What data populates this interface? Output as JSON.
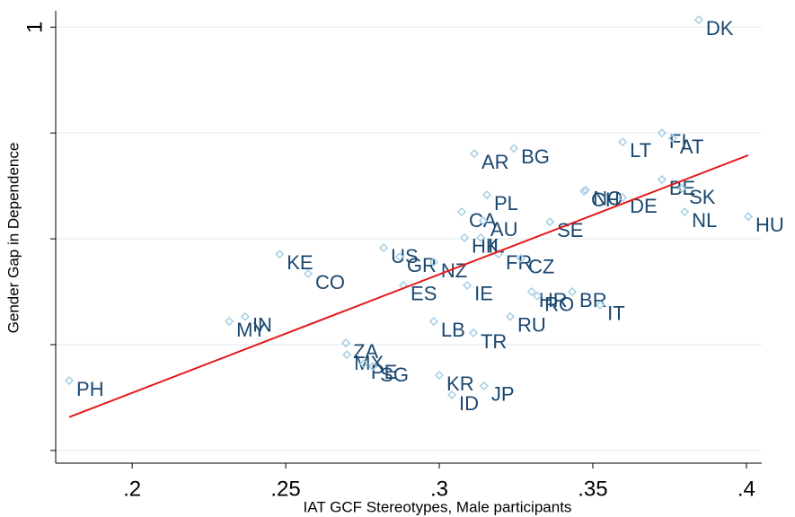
{
  "chart_data": {
    "type": "scatter",
    "xlabel": "IAT GCF Stereotypes, Male participants",
    "ylabel": "Gender Gap in Dependence",
    "labels": [
      "DK",
      "FI",
      "AT",
      "LT",
      "BG",
      "AR",
      "BE",
      "SK",
      "NL",
      "HU",
      "NO",
      "CH",
      "DE",
      "SE",
      "PL",
      "CA",
      "AU",
      "HK",
      "IL",
      "FR",
      "CZ",
      "KE",
      "CO",
      "US",
      "GR",
      "NZ",
      "ES",
      "IE",
      "HR",
      "BR",
      "RO",
      "IT",
      "RU",
      "LB",
      "TR",
      "IN",
      "MY",
      "ZA",
      "MX",
      "PE",
      "SG",
      "KR",
      "JP",
      "ID",
      "PH"
    ],
    "x": [
      0.3845,
      0.3725,
      0.376,
      0.3597,
      0.3243,
      0.3114,
      0.3725,
      0.379,
      0.3799,
      0.4006,
      0.3477,
      0.3471,
      0.3597,
      0.336,
      0.3155,
      0.3073,
      0.3143,
      0.3082,
      0.3135,
      0.3193,
      0.3266,
      0.248,
      0.2573,
      0.2819,
      0.2871,
      0.2982,
      0.2883,
      0.3091,
      0.3301,
      0.3433,
      0.3319,
      0.3524,
      0.3231,
      0.2982,
      0.3111,
      0.2368,
      0.2316,
      0.2696,
      0.2699,
      0.2754,
      0.2784,
      0.3,
      0.3146,
      0.3041,
      0.1795
    ],
    "values": [
      1.014,
      0.8,
      0.79,
      0.783,
      0.771,
      0.761,
      0.712,
      0.695,
      0.651,
      0.642,
      0.692,
      0.69,
      0.678,
      0.632,
      0.683,
      0.651,
      0.634,
      0.602,
      0.602,
      0.571,
      0.563,
      0.571,
      0.534,
      0.583,
      0.566,
      0.556,
      0.512,
      0.512,
      0.5,
      0.5,
      0.492,
      0.475,
      0.453,
      0.444,
      0.422,
      0.453,
      0.444,
      0.403,
      0.381,
      0.364,
      0.359,
      0.342,
      0.322,
      0.305,
      0.332
    ],
    "marker_color": "#a6cfe3",
    "label_color": "#1a476f",
    "fit": {
      "x": [
        0.1795,
        0.4006
      ],
      "y": [
        0.263,
        0.758
      ],
      "color": "#e41a1c"
    },
    "xlim": [
      0.1751,
      0.405
    ],
    "ylim": [
      0.176,
      1.031
    ],
    "xticks": [
      {
        "value": 0.2,
        "label": ".2"
      },
      {
        "value": 0.25,
        "label": ".25"
      },
      {
        "value": 0.3,
        "label": ".3"
      },
      {
        "value": 0.35,
        "label": ".35"
      },
      {
        "value": 0.4,
        "label": ".4"
      }
    ],
    "yticks": [
      1
    ],
    "yticks_unlabeled": [
      0.2,
      0.4,
      0.6,
      0.8
    ],
    "grid": true
  }
}
